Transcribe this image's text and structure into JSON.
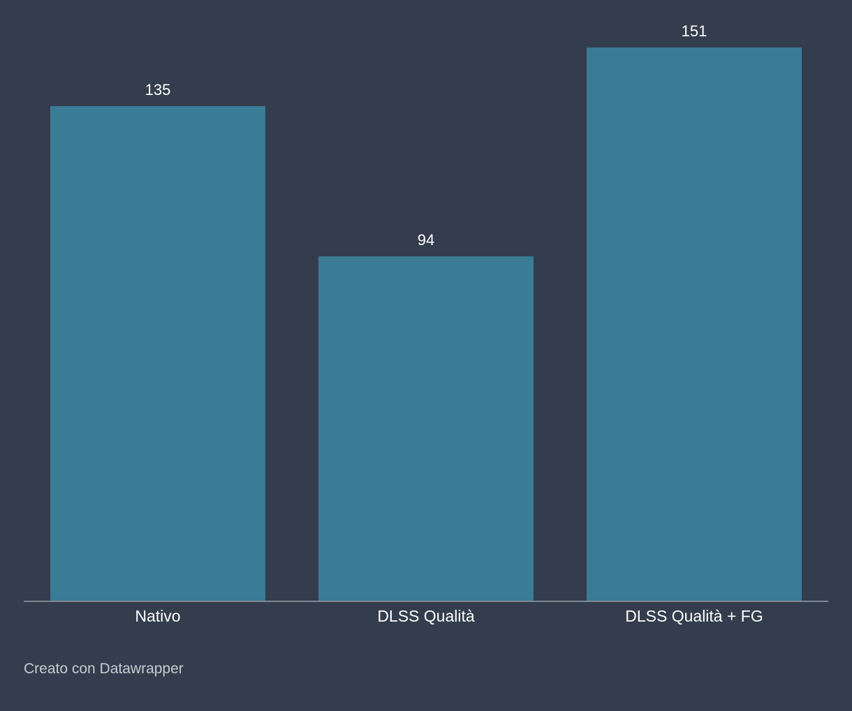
{
  "colors": {
    "background": "#333d4d",
    "bar": "#3a7b96",
    "baseline": "#9aa0a8",
    "text": "#ffffff",
    "footer_text": "#c8ccd2"
  },
  "chart_data": {
    "type": "bar",
    "categories": [
      "Nativo",
      "DLSS Qualità",
      "DLSS Qualità + FG"
    ],
    "values": [
      135,
      94,
      151
    ],
    "title": "",
    "xlabel": "",
    "ylabel": "",
    "ylim": [
      0,
      151
    ],
    "grid": false,
    "legend": "none",
    "data_labels": true
  },
  "footer": {
    "credit": "Creato con Datawrapper"
  }
}
